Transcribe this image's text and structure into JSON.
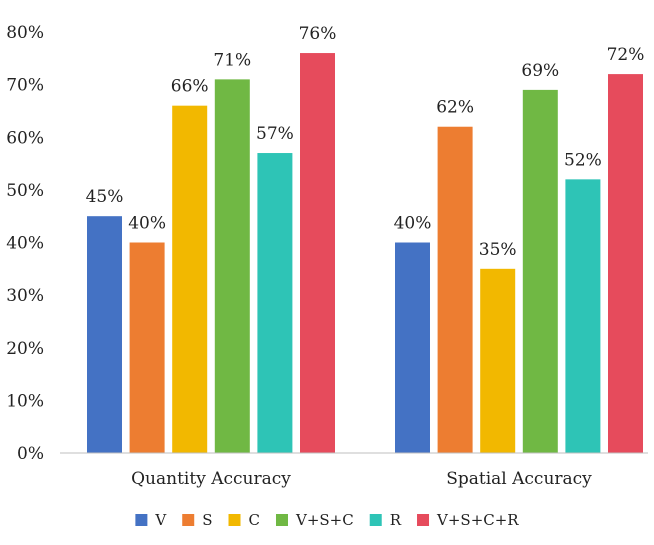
{
  "chart_data": {
    "type": "bar",
    "categories": [
      "Quantity Accuracy",
      "Spatial Accuracy"
    ],
    "series": [
      {
        "name": "V",
        "values": [
          45,
          40
        ],
        "color": "#4472C4"
      },
      {
        "name": "S",
        "values": [
          40,
          62
        ],
        "color": "#ED7D31"
      },
      {
        "name": "C",
        "values": [
          66,
          35
        ],
        "color": "#F2B800"
      },
      {
        "name": "V+S+C",
        "values": [
          71,
          69
        ],
        "color": "#70B844"
      },
      {
        "name": "R",
        "values": [
          57,
          52
        ],
        "color": "#2EC4B6"
      },
      {
        "name": "V+S+C+R",
        "values": [
          76,
          72
        ],
        "color": "#E64B5C"
      }
    ],
    "ylim": [
      0,
      80
    ],
    "yticks": [
      0,
      10,
      20,
      30,
      40,
      50,
      60,
      70,
      80
    ],
    "value_format": "percent",
    "grid": false,
    "legend_position": "bottom"
  }
}
